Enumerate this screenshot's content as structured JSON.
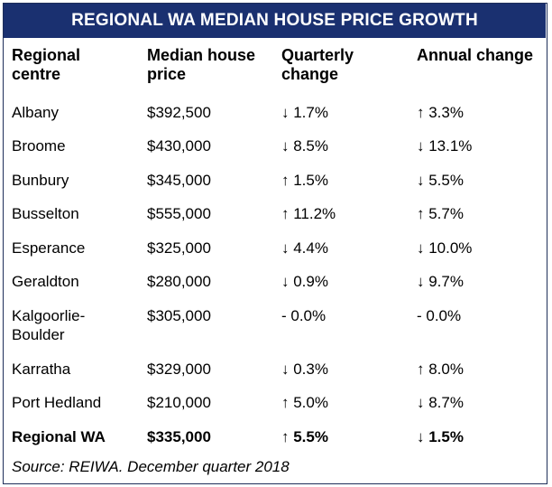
{
  "title": "REGIONAL WA MEDIAN HOUSE PRICE GROWTH",
  "columns": {
    "centre": [
      "Regional",
      "centre"
    ],
    "price": [
      "Median house",
      "price"
    ],
    "quarterly": [
      "Quarterly",
      "change"
    ],
    "annual": [
      "Annual change"
    ]
  },
  "rows": [
    {
      "centre": "Albany",
      "price": "$392,500",
      "quarterly": "↓ 1.7%",
      "annual": "↑ 3.3%"
    },
    {
      "centre": "Broome",
      "price": "$430,000",
      "quarterly": "↓ 8.5%",
      "annual": "↓ 13.1%"
    },
    {
      "centre": "Bunbury",
      "price": "$345,000",
      "quarterly": "↑ 1.5%",
      "annual": "↓ 5.5%"
    },
    {
      "centre": "Busselton",
      "price": "$555,000",
      "quarterly": "↑ 11.2%",
      "annual": "↑ 5.7%"
    },
    {
      "centre": "Esperance",
      "price": "$325,000",
      "quarterly": "↓ 4.4%",
      "annual": "↓ 10.0%"
    },
    {
      "centre": "Geraldton",
      "price": "$280,000",
      "quarterly": "↓ 0.9%",
      "annual": "↓ 9.7%"
    },
    {
      "centre_lines": [
        "Kalgoorlie-",
        "Boulder"
      ],
      "price": "$305,000",
      "quarterly": "- 0.0%",
      "annual": "- 0.0%"
    },
    {
      "centre": "Karratha",
      "price": "$329,000",
      "quarterly": "↓ 0.3%",
      "annual": "↑ 8.0%"
    },
    {
      "centre": "Port Hedland",
      "price": "$210,000",
      "quarterly": "↑ 5.0%",
      "annual": "↓ 8.7%"
    }
  ],
  "total": {
    "centre": "Regional WA",
    "price": "$335,000",
    "quarterly": "↑ 5.5%",
    "annual": "↓ 1.5%"
  },
  "source": "Source: REIWA. December quarter 2018",
  "colors": {
    "banner_bg": "#1a3070",
    "banner_text": "#ffffff",
    "border": "#1f2f5a"
  }
}
